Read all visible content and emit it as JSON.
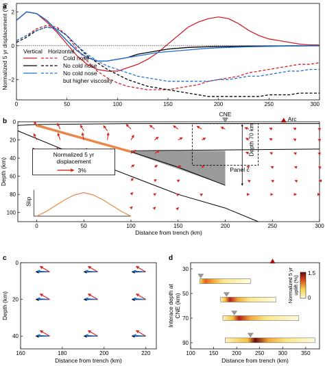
{
  "colors": {
    "cold_nose": "#d0202a",
    "no_cold_nose": "#000000",
    "higher_viscosity": "#1f6fd6",
    "slab_orange": "#e8874a",
    "arrow_red": "#d8241f",
    "wedge_gray": "#9a9a9a"
  },
  "chart_data": [
    {
      "panel": "a",
      "type": "line",
      "ylabel": "Normalized 5 yr displacement (%)",
      "xlim": [
        0,
        300
      ],
      "ylim": [
        -3.2,
        2.5
      ],
      "xticks": [
        "0",
        "50",
        "100",
        "150",
        "200",
        "250",
        "300"
      ],
      "yticks": [
        "2",
        "0",
        "-2"
      ],
      "legend": {
        "col1": "Vertical",
        "col2": "Horizontal",
        "entries": [
          "Cold nose",
          "No cold nose",
          "No cold nose",
          "but higher viscosity"
        ]
      },
      "series": [
        {
          "name": "Cold nose (vertical)",
          "style": "solid",
          "color_key": "cold_nose",
          "x": [
            0,
            10,
            20,
            30,
            40,
            50,
            60,
            70,
            80,
            90,
            100,
            110,
            120,
            130,
            140,
            150,
            160,
            170,
            180,
            190,
            200,
            210,
            220,
            230,
            240,
            250,
            260,
            270,
            280,
            290,
            300
          ],
          "y": [
            1.5,
            2.0,
            1.9,
            1.4,
            0.8,
            0.1,
            -0.6,
            -1.1,
            -1.4,
            -1.5,
            -1.5,
            -1.3,
            -1.1,
            -0.8,
            -0.4,
            0.1,
            0.6,
            1.1,
            1.4,
            1.6,
            1.7,
            1.6,
            1.3,
            0.9,
            0.6,
            0.4,
            0.3,
            0.2,
            0.1,
            0.05,
            0.05
          ]
        },
        {
          "name": "Cold nose (horizontal)",
          "style": "dashed",
          "color_key": "cold_nose",
          "x": [
            0,
            10,
            20,
            30,
            40,
            50,
            60,
            70,
            80,
            90,
            100,
            110,
            120,
            130,
            140,
            150,
            160,
            170,
            180,
            190,
            200,
            210,
            220,
            230,
            240,
            250,
            260,
            270,
            280,
            290,
            300
          ],
          "y": [
            0.3,
            0.6,
            1.0,
            1.2,
            1.1,
            0.6,
            -0.2,
            -0.9,
            -1.5,
            -1.9,
            -2.2,
            -2.4,
            -2.5,
            -2.6,
            -2.6,
            -2.6,
            -2.5,
            -2.4,
            -2.3,
            -2.1,
            -2.0,
            -1.9,
            -1.8,
            -1.6,
            -1.5,
            -1.4,
            -1.3,
            -1.2,
            -1.1,
            -1.1,
            -1.0
          ]
        },
        {
          "name": "No cold nose (vertical)",
          "style": "solid",
          "color_key": "no_cold_nose",
          "x": [
            0,
            10,
            20,
            30,
            40,
            50,
            60,
            70,
            80,
            90,
            100,
            110,
            120,
            130,
            140,
            150,
            160,
            170,
            180,
            190,
            200,
            210,
            220,
            230,
            240,
            250,
            260,
            270,
            280,
            290,
            300
          ],
          "y": [
            1.5,
            2.0,
            1.9,
            1.5,
            0.9,
            0.3,
            -0.3,
            -0.7,
            -0.9,
            -0.9,
            -0.8,
            -0.7,
            -0.5,
            -0.4,
            -0.3,
            -0.2,
            -0.15,
            -0.1,
            -0.08,
            -0.06,
            -0.05,
            -0.04,
            -0.03,
            -0.02,
            -0.02,
            -0.01,
            -0.01,
            0,
            0,
            0,
            0
          ]
        },
        {
          "name": "No cold nose (horizontal)",
          "style": "dashed",
          "color_key": "no_cold_nose",
          "x": [
            0,
            10,
            20,
            30,
            40,
            50,
            60,
            70,
            80,
            90,
            100,
            110,
            120,
            130,
            140,
            150,
            160,
            170,
            180,
            190,
            200,
            210,
            220,
            230,
            240,
            250,
            260,
            270,
            280,
            290,
            300
          ],
          "y": [
            0.2,
            0.5,
            0.9,
            1.1,
            1.0,
            0.6,
            0.0,
            -0.6,
            -1.0,
            -1.4,
            -1.7,
            -2.0,
            -2.2,
            -2.4,
            -2.5,
            -2.6,
            -2.7,
            -2.8,
            -2.9,
            -3.0,
            -3.0,
            -3.0,
            -3.0,
            -3.0,
            -3.0,
            -2.9,
            -2.9,
            -2.9,
            -2.8,
            -2.8,
            -2.8
          ]
        },
        {
          "name": "No cold nose but higher viscosity (vertical)",
          "style": "solid",
          "color_key": "higher_viscosity",
          "x": [
            0,
            10,
            20,
            30,
            40,
            50,
            60,
            70,
            80,
            90,
            100,
            110,
            120,
            130,
            140,
            150,
            160,
            170,
            180,
            190,
            200,
            210,
            220,
            230,
            240,
            250,
            260,
            270,
            280,
            290,
            300
          ],
          "y": [
            1.5,
            2.0,
            1.9,
            1.5,
            0.9,
            0.3,
            -0.3,
            -0.7,
            -0.9,
            -0.9,
            -0.8,
            -0.7,
            -0.6,
            -0.5,
            -0.4,
            -0.35,
            -0.3,
            -0.25,
            -0.2,
            -0.15,
            -0.12,
            -0.1,
            -0.08,
            -0.06,
            -0.05,
            -0.04,
            -0.03,
            -0.02,
            -0.02,
            -0.01,
            -0.01
          ]
        },
        {
          "name": "No cold nose but higher viscosity (horizontal)",
          "style": "dashed",
          "color_key": "higher_viscosity",
          "x": [
            0,
            10,
            20,
            30,
            40,
            50,
            60,
            70,
            80,
            90,
            100,
            110,
            120,
            130,
            140,
            150,
            160,
            170,
            180,
            190,
            200,
            210,
            220,
            230,
            240,
            250,
            260,
            270,
            280,
            290,
            300
          ],
          "y": [
            0.3,
            0.6,
            0.9,
            1.1,
            1.0,
            0.6,
            0.0,
            -0.5,
            -0.9,
            -1.2,
            -1.4,
            -1.6,
            -1.8,
            -1.9,
            -2.0,
            -2.1,
            -2.1,
            -2.1,
            -2.1,
            -2.1,
            -2.0,
            -2.0,
            -1.9,
            -1.8,
            -1.8,
            -1.7,
            -1.6,
            -1.5,
            -1.5,
            -1.4,
            -1.4
          ]
        }
      ]
    },
    {
      "panel": "b",
      "type": "scatter",
      "xlabel": "Distance from trench (km)",
      "ylabel": "Depth (km)",
      "xlim": [
        -20,
        300
      ],
      "ylim": [
        0,
        110
      ],
      "xticks": [
        "0",
        "50",
        "100",
        "150",
        "200",
        "250",
        "300"
      ],
      "yticks": [
        "0",
        "20",
        "40",
        "60",
        "80",
        "100"
      ],
      "labels": {
        "cne": "CNE",
        "arc": "Arc",
        "depth": "Depth 70 km",
        "panel_ref": "Panel c",
        "slip": "Slip"
      },
      "cne_x": 200,
      "arc_x": 262,
      "legend_box": {
        "title1": "Normalized 5 yr",
        "title2": "displacement",
        "scale": "3%"
      },
      "slip_profile": {
        "x": [
          0,
          10,
          20,
          30,
          40,
          50,
          60,
          70,
          80,
          90,
          100
        ],
        "slip": [
          0,
          0.2,
          0.45,
          0.7,
          0.9,
          1.0,
          0.9,
          0.7,
          0.45,
          0.2,
          0
        ]
      },
      "vectors": {
        "note": "sampled displacement vectors (x km, depth km, dx, dy in display units)",
        "points": [
          [
            0,
            5,
            -0.5,
            -1.0
          ],
          [
            25,
            8,
            -0.6,
            -1.2
          ],
          [
            50,
            10,
            -0.7,
            -1.2
          ],
          [
            75,
            10,
            -0.8,
            -1.1
          ],
          [
            100,
            8,
            -1.0,
            -1.0
          ],
          [
            125,
            8,
            -1.0,
            -0.8
          ],
          [
            150,
            8,
            -1.0,
            -0.7
          ],
          [
            175,
            8,
            -1.0,
            -0.6
          ],
          [
            200,
            8,
            -0.9,
            -0.4
          ],
          [
            225,
            8,
            -0.8,
            -0.3
          ],
          [
            250,
            8,
            -0.6,
            -0.2
          ],
          [
            275,
            8,
            -0.5,
            -0.2
          ],
          [
            300,
            8,
            -0.3,
            -0.1
          ],
          [
            0,
            20,
            -0.6,
            -1.3
          ],
          [
            25,
            20,
            -0.5,
            -1.4
          ],
          [
            50,
            20,
            -0.3,
            -1.5
          ],
          [
            75,
            20,
            0.2,
            -1.5
          ],
          [
            100,
            20,
            0.6,
            -1.0
          ],
          [
            125,
            20,
            0.8,
            -0.6
          ],
          [
            150,
            20,
            0.9,
            -0.5
          ],
          [
            175,
            20,
            0.8,
            -0.4
          ],
          [
            225,
            20,
            -0.6,
            -0.4
          ],
          [
            250,
            20,
            -0.6,
            -0.3
          ],
          [
            275,
            20,
            -0.5,
            -0.2
          ],
          [
            300,
            20,
            -0.3,
            -0.1
          ],
          [
            0,
            35,
            -0.8,
            -1.2
          ],
          [
            25,
            35,
            -0.7,
            -1.2
          ],
          [
            50,
            35,
            0.6,
            -1.1
          ],
          [
            75,
            35,
            0.8,
            -1.0
          ],
          [
            100,
            35,
            1.0,
            -0.7
          ],
          [
            125,
            35,
            1.0,
            -0.6
          ],
          [
            225,
            35,
            -0.6,
            -0.3
          ],
          [
            250,
            35,
            -0.5,
            -0.2
          ],
          [
            275,
            35,
            -0.4,
            -0.15
          ],
          [
            300,
            35,
            -0.3,
            -0.1
          ],
          [
            75,
            50,
            0.6,
            -0.6
          ],
          [
            100,
            50,
            0.7,
            -0.5
          ],
          [
            125,
            50,
            0.6,
            -0.4
          ],
          [
            150,
            50,
            0.6,
            -0.3
          ],
          [
            175,
            50,
            0.5,
            -0.3
          ],
          [
            225,
            50,
            -0.4,
            -0.2
          ],
          [
            250,
            50,
            -0.3,
            -0.15
          ],
          [
            275,
            50,
            -0.3,
            -0.1
          ],
          [
            300,
            50,
            -0.2,
            -0.1
          ],
          [
            100,
            65,
            0.5,
            -0.5
          ],
          [
            125,
            65,
            0.4,
            -0.3
          ],
          [
            150,
            65,
            0.3,
            -0.2
          ],
          [
            225,
            65,
            -0.2,
            -0.1
          ],
          [
            250,
            65,
            -0.2,
            -0.1
          ],
          [
            275,
            65,
            -0.2,
            -0.1
          ],
          [
            300,
            65,
            -0.1,
            0
          ],
          [
            100,
            80,
            0.4,
            -0.4
          ],
          [
            125,
            80,
            0.3,
            -0.2
          ],
          [
            150,
            80,
            0.2,
            -0.1
          ],
          [
            175,
            80,
            0.2,
            -0.1
          ],
          [
            225,
            80,
            0.1,
            0
          ],
          [
            250,
            80,
            0.1,
            0
          ],
          [
            275,
            80,
            0.1,
            0
          ],
          [
            300,
            80,
            0.1,
            0
          ],
          [
            100,
            95,
            0.3,
            -0.3
          ],
          [
            125,
            95,
            0.2,
            -0.2
          ],
          [
            150,
            95,
            0.1,
            -0.1
          ]
        ]
      }
    },
    {
      "panel": "c",
      "type": "scatter",
      "xlabel": "Distance from trench (km)",
      "ylabel": "Depth (km)",
      "xlim": [
        160,
        225
      ],
      "ylim": [
        0,
        47
      ],
      "xticks": [
        "160",
        "180",
        "200",
        "220"
      ],
      "yticks": [
        "0",
        "20",
        "40"
      ],
      "grid_points": {
        "x": [
          170,
          193,
          216
        ],
        "depth": [
          5,
          20,
          40
        ]
      },
      "note": "At each grid point three displacement vectors: black (no cold nose), blue (higher viscosity), red (cold nose)."
    },
    {
      "panel": "d",
      "type": "heatmap",
      "xlabel": "Distance from trench (km)",
      "ylabel": "Interace depth at CNE (km)",
      "xlim": [
        100,
        380
      ],
      "ylim": [
        25,
        95
      ],
      "xticks": [
        "100",
        "150",
        "200",
        "250",
        "300",
        "350"
      ],
      "yticks": [
        "30",
        "50",
        "70",
        "90"
      ],
      "colorbar": {
        "label": "Normalized 5 yr uplift (%)",
        "min": 0,
        "max": 1.5,
        "ticks": [
          "0",
          "1.5"
        ]
      },
      "arc_x": 278,
      "bars": [
        {
          "depth": 40,
          "x_start": 120,
          "x_end": 230,
          "cne_x": 122,
          "peak_x": 132,
          "peak": 0.8
        },
        {
          "depth": 55,
          "x_start": 165,
          "x_end": 285,
          "cne_x": 178,
          "peak_x": 185,
          "peak": 1.2
        },
        {
          "depth": 70,
          "x_start": 170,
          "x_end": 335,
          "cne_x": 195,
          "peak_x": 205,
          "peak": 1.3
        },
        {
          "depth": 88,
          "x_start": 175,
          "x_end": 370,
          "cne_x": 230,
          "peak_x": 240,
          "peak": 1.5
        }
      ]
    }
  ]
}
